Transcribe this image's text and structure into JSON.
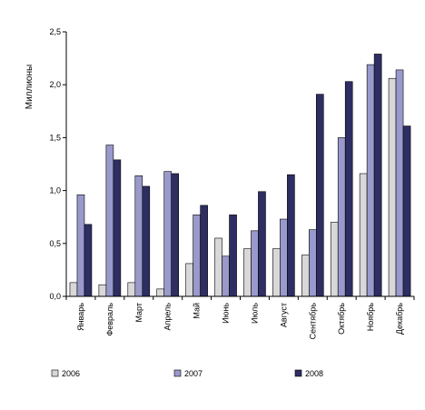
{
  "chart_data": {
    "type": "bar",
    "ylabel": "Миллионы",
    "ylim": [
      0,
      2.5
    ],
    "yticks": [
      "0,0",
      "0,5",
      "1,0",
      "1,5",
      "2,0",
      "2,5"
    ],
    "grid": false,
    "legend_position": "bottom",
    "categories": [
      "Январь",
      "Февраль",
      "Март",
      "Апрель",
      "Май",
      "Июнь",
      "Июль",
      "Август",
      "Сентябрь",
      "Октябрь",
      "Ноябрь",
      "Декабрь"
    ],
    "series": [
      {
        "name": "2006",
        "color": "#d8d8d8",
        "values": [
          0.13,
          0.11,
          0.13,
          0.07,
          0.31,
          0.55,
          0.45,
          0.45,
          0.39,
          0.7,
          1.16,
          2.06
        ]
      },
      {
        "name": "2007",
        "color": "#9999cc",
        "values": [
          0.96,
          1.43,
          1.14,
          1.18,
          0.77,
          0.38,
          0.62,
          0.73,
          0.63,
          1.5,
          2.19,
          2.14
        ]
      },
      {
        "name": "2008",
        "color": "#2e2e63",
        "values": [
          0.68,
          1.29,
          1.04,
          1.16,
          0.86,
          0.77,
          0.99,
          1.15,
          1.91,
          2.03,
          2.29,
          1.61
        ]
      }
    ]
  }
}
